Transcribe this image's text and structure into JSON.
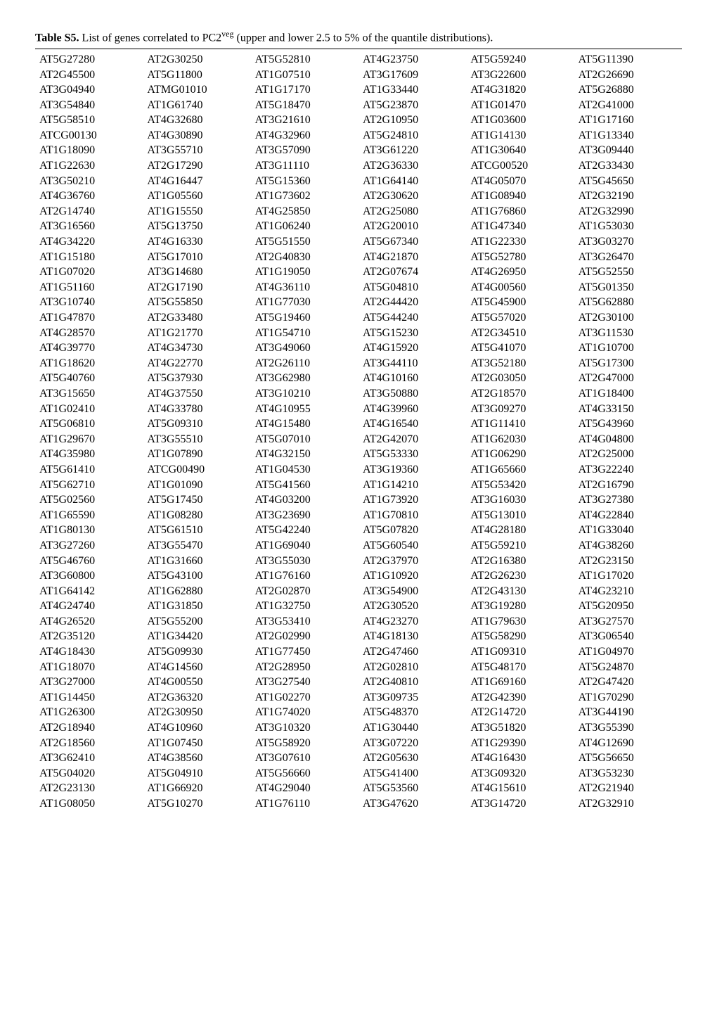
{
  "caption": {
    "label": "Table S5.",
    "text_before_sup": " List of genes correlated to PC2",
    "sup": "veg",
    "text_after_sup": " (upper and lower 2.5 to 5% of the quantile distributions)."
  },
  "table": {
    "rows": [
      [
        "AT5G27280",
        "AT2G30250",
        "AT5G52810",
        "AT4G23750",
        "AT5G59240",
        "AT5G11390"
      ],
      [
        "AT2G45500",
        "AT5G11800",
        "AT1G07510",
        "AT3G17609",
        "AT3G22600",
        "AT2G26690"
      ],
      [
        "AT3G04940",
        "ATMG01010",
        "AT1G17170",
        "AT1G33440",
        "AT4G31820",
        "AT5G26880"
      ],
      [
        "AT3G54840",
        "AT1G61740",
        "AT5G18470",
        "AT5G23870",
        "AT1G01470",
        "AT2G41000"
      ],
      [
        "AT5G58510",
        "AT4G32680",
        "AT3G21610",
        "AT2G10950",
        "AT1G03600",
        "AT1G17160"
      ],
      [
        "ATCG00130",
        "AT4G30890",
        "AT4G32960",
        "AT5G24810",
        "AT1G14130",
        "AT1G13340"
      ],
      [
        "AT1G18090",
        "AT3G55710",
        "AT3G57090",
        "AT3G61220",
        "AT1G30640",
        "AT3G09440"
      ],
      [
        "AT1G22630",
        "AT2G17290",
        "AT3G11110",
        "AT2G36330",
        "ATCG00520",
        "AT2G33430"
      ],
      [
        "AT3G50210",
        "AT4G16447",
        "AT5G15360",
        "AT1G64140",
        "AT4G05070",
        "AT5G45650"
      ],
      [
        "AT4G36760",
        "AT1G05560",
        "AT1G73602",
        "AT2G30620",
        "AT1G08940",
        "AT2G32190"
      ],
      [
        "AT2G14740",
        "AT1G15550",
        "AT4G25850",
        "AT2G25080",
        "AT1G76860",
        "AT2G32990"
      ],
      [
        "AT3G16560",
        "AT5G13750",
        "AT1G06240",
        "AT2G20010",
        "AT1G47340",
        "AT1G53030"
      ],
      [
        "AT4G34220",
        "AT4G16330",
        "AT5G51550",
        "AT5G67340",
        "AT1G22330",
        "AT3G03270"
      ],
      [
        "AT1G15180",
        "AT5G17010",
        "AT2G40830",
        "AT4G21870",
        "AT5G52780",
        "AT3G26470"
      ],
      [
        "AT1G07020",
        "AT3G14680",
        "AT1G19050",
        "AT2G07674",
        "AT4G26950",
        "AT5G52550"
      ],
      [
        "AT1G51160",
        "AT2G17190",
        "AT4G36110",
        "AT5G04810",
        "AT4G00560",
        "AT5G01350"
      ],
      [
        "AT3G10740",
        "AT5G55850",
        "AT1G77030",
        "AT2G44420",
        "AT5G45900",
        "AT5G62880"
      ],
      [
        "AT1G47870",
        "AT2G33480",
        "AT5G19460",
        "AT5G44240",
        "AT5G57020",
        "AT2G30100"
      ],
      [
        "AT4G28570",
        "AT1G21770",
        "AT1G54710",
        "AT5G15230",
        "AT2G34510",
        "AT3G11530"
      ],
      [
        "AT4G39770",
        "AT4G34730",
        "AT3G49060",
        "AT4G15920",
        "AT5G41070",
        "AT1G10700"
      ],
      [
        "AT1G18620",
        "AT4G22770",
        "AT2G26110",
        "AT3G44110",
        "AT3G52180",
        "AT5G17300"
      ],
      [
        "AT5G40760",
        "AT5G37930",
        "AT3G62980",
        "AT4G10160",
        "AT2G03050",
        "AT2G47000"
      ],
      [
        "AT3G15650",
        "AT4G37550",
        "AT3G10210",
        "AT3G50880",
        "AT2G18570",
        "AT1G18400"
      ],
      [
        "AT1G02410",
        "AT4G33780",
        "AT4G10955",
        "AT4G39960",
        "AT3G09270",
        "AT4G33150"
      ],
      [
        "AT5G06810",
        "AT5G09310",
        "AT4G15480",
        "AT4G16540",
        "AT1G11410",
        "AT5G43960"
      ],
      [
        "AT1G29670",
        "AT3G55510",
        "AT5G07010",
        "AT2G42070",
        "AT1G62030",
        "AT4G04800"
      ],
      [
        "AT4G35980",
        "AT1G07890",
        "AT4G32150",
        "AT5G53330",
        "AT1G06290",
        "AT2G25000"
      ],
      [
        "AT5G61410",
        "ATCG00490",
        "AT1G04530",
        "AT3G19360",
        "AT1G65660",
        "AT3G22240"
      ],
      [
        "AT5G62710",
        "AT1G01090",
        "AT5G41560",
        "AT1G14210",
        "AT5G53420",
        "AT2G16790"
      ],
      [
        "AT5G02560",
        "AT5G17450",
        "AT4G03200",
        "AT1G73920",
        "AT3G16030",
        "AT3G27380"
      ],
      [
        "AT1G65590",
        "AT1G08280",
        "AT3G23690",
        "AT1G70810",
        "AT5G13010",
        "AT4G22840"
      ],
      [
        "AT1G80130",
        "AT5G61510",
        "AT5G42240",
        "AT5G07820",
        "AT4G28180",
        "AT1G33040"
      ],
      [
        "AT3G27260",
        "AT3G55470",
        "AT1G69040",
        "AT5G60540",
        "AT5G59210",
        "AT4G38260"
      ],
      [
        "AT5G46760",
        "AT1G31660",
        "AT3G55030",
        "AT2G37970",
        "AT2G16380",
        "AT2G23150"
      ],
      [
        "AT3G60800",
        "AT5G43100",
        "AT1G76160",
        "AT1G10920",
        "AT2G26230",
        "AT1G17020"
      ],
      [
        "AT1G64142",
        "AT1G62880",
        "AT2G02870",
        "AT3G54900",
        "AT2G43130",
        "AT4G23210"
      ],
      [
        "AT4G24740",
        "AT1G31850",
        "AT1G32750",
        "AT2G30520",
        "AT3G19280",
        "AT5G20950"
      ],
      [
        "AT4G26520",
        "AT5G55200",
        "AT3G53410",
        "AT4G23270",
        "AT1G79630",
        "AT3G27570"
      ],
      [
        "AT2G35120",
        "AT1G34420",
        "AT2G02990",
        "AT4G18130",
        "AT5G58290",
        "AT3G06540"
      ],
      [
        "AT4G18430",
        "AT5G09930",
        "AT1G77450",
        "AT2G47460",
        "AT1G09310",
        "AT1G04970"
      ],
      [
        "AT1G18070",
        "AT4G14560",
        "AT2G28950",
        "AT2G02810",
        "AT5G48170",
        "AT5G24870"
      ],
      [
        "AT3G27000",
        "AT4G00550",
        "AT3G27540",
        "AT2G40810",
        "AT1G69160",
        "AT2G47420"
      ],
      [
        "AT1G14450",
        "AT2G36320",
        "AT1G02270",
        "AT3G09735",
        "AT2G42390",
        "AT1G70290"
      ],
      [
        "AT1G26300",
        "AT2G30950",
        "AT1G74020",
        "AT5G48370",
        "AT2G14720",
        "AT3G44190"
      ],
      [
        "AT2G18940",
        "AT4G10960",
        "AT3G10320",
        "AT1G30440",
        "AT3G51820",
        "AT3G55390"
      ],
      [
        "AT2G18560",
        "AT1G07450",
        "AT5G58920",
        "AT3G07220",
        "AT1G29390",
        "AT4G12690"
      ],
      [
        "AT3G62410",
        "AT4G38560",
        "AT3G07610",
        "AT2G05630",
        "AT4G16430",
        "AT5G56650"
      ],
      [
        "AT5G04020",
        "AT5G04910",
        "AT5G56660",
        "AT5G41400",
        "AT3G09320",
        "AT3G53230"
      ],
      [
        "AT2G23130",
        "AT1G66920",
        "AT4G29040",
        "AT5G53560",
        "AT4G15610",
        "AT2G21940"
      ],
      [
        "AT1G08050",
        "AT5G10270",
        "AT1G76110",
        "AT3G47620",
        "AT3G14720",
        "AT2G32910"
      ]
    ]
  }
}
